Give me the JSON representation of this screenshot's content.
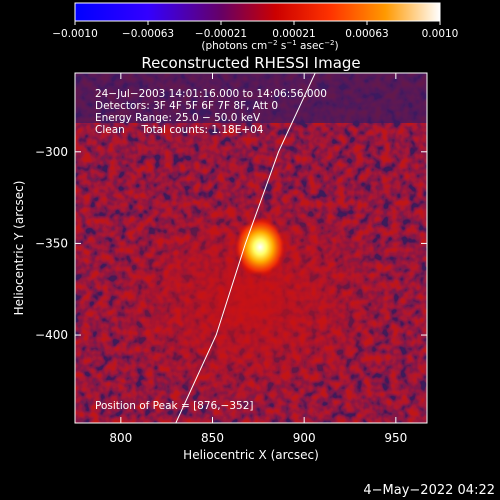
{
  "colorbar": {
    "ticks": [
      "−0.0010",
      "−0.00063",
      "−0.00021",
      "0.00021",
      "0.00063",
      "0.0010"
    ],
    "units_main": "(photons cm",
    "units_sup1": "−2",
    "units_mid": " s",
    "units_sup2": "−1",
    "units_end": " asec",
    "units_sup3": "−2",
    "units_close": ")"
  },
  "title": "Reconstructed RHESSI Image",
  "info": {
    "line1": "24−Jul−2003 14:01:16.000 to 14:06:56.000",
    "line2": "Detectors: 3F 4F 5F 6F 7F 8F, Att 0",
    "line3": "Energy Range: 25.0 − 50.0 keV",
    "line4": "Clean     Total counts: 1.18E+04"
  },
  "peak_label": "Position of Peak = [876,−352]",
  "timestamp": "4−May−2022 04:22",
  "colors": {
    "background": "#000000",
    "text": "#ffffff",
    "limb": "#ffffff"
  },
  "chart_data": {
    "type": "heatmap",
    "title": "Reconstructed RHESSI Image",
    "xlabel": "Heliocentric X (arcsec)",
    "ylabel": "Heliocentric Y (arcsec)",
    "xticks": [
      800,
      850,
      900,
      950
    ],
    "yticks": [
      -300,
      -350,
      -400
    ],
    "xlim": [
      775,
      967
    ],
    "ylim": [
      -448,
      -257
    ],
    "colorbar_range": [
      -0.001,
      0.001
    ],
    "colormap": "blue-purple-red-yellow-white",
    "peak": {
      "x": 876,
      "y": -352
    },
    "limb_points": [
      [
        830,
        -448
      ],
      [
        852,
        -400
      ],
      [
        868,
        -350
      ],
      [
        886,
        -300
      ],
      [
        906,
        -257
      ]
    ]
  }
}
